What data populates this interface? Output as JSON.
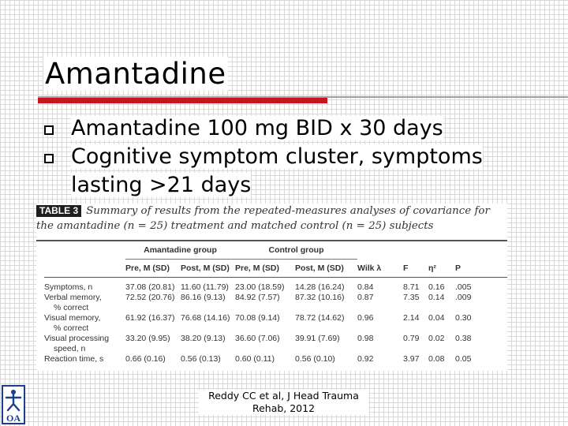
{
  "slide": {
    "title": "Amantadine",
    "bullets": [
      "Amantadine 100 mg BID x 30 days",
      "Cognitive symptom cluster, symptoms lasting >21 days"
    ],
    "citation": "Reddy CC et al, J Head Trauma Rehab, 2012",
    "logo_text": "OA"
  },
  "figure": {
    "tag": "TABLE 3",
    "caption": "Summary of results from the repeated-measures analyses of covariance for the amantadine (n = 25) treatment and matched control (n = 25) subjects",
    "groups": [
      "Amantadine group",
      "Control group"
    ],
    "columns": [
      "",
      "Pre, M (SD)",
      "Post, M (SD)",
      "Pre, M (SD)",
      "Post, M (SD)",
      "Wilk λ",
      "F",
      "η²",
      "P"
    ],
    "rows": [
      [
        "Symptoms, n",
        "37.08 (20.81)",
        "11.60 (11.79)",
        "23.00 (18.59)",
        "14.28 (16.24)",
        "0.84",
        "8.71",
        "0.16",
        ".005"
      ],
      [
        "Verbal memory,",
        "72.52 (20.76)",
        "86.16 (9.13)",
        "84.92 (7.57)",
        "87.32 (10.16)",
        "0.87",
        "7.35",
        "0.14",
        ".009"
      ],
      [
        "% correct",
        "",
        "",
        "",
        "",
        "",
        "",
        "",
        ""
      ],
      [
        "Visual memory,",
        "61.92 (16.37)",
        "76.68 (14.16)",
        "70.08 (9.14)",
        "78.72 (14.62)",
        "0.96",
        "2.14",
        "0.04",
        "0.30"
      ],
      [
        "% correct",
        "",
        "",
        "",
        "",
        "",
        "",
        "",
        ""
      ],
      [
        "Visual processing",
        "33.20 (9.95)",
        "38.20 (9.13)",
        "36.60 (7.06)",
        "39.91 (7.69)",
        "0.98",
        "0.79",
        "0.02",
        "0.38"
      ],
      [
        "speed, n",
        "",
        "",
        "",
        "",
        "",
        "",
        "",
        ""
      ],
      [
        "Reaction time, s",
        "0.66 (0.16)",
        "0.56 (0.13)",
        "0.60 (0.11)",
        "0.56 (0.10)",
        "0.92",
        "3.97",
        "0.08",
        "0.05"
      ]
    ]
  },
  "colors": {
    "accent_red": "#c8141e",
    "rule_gray": "#a0a0a0",
    "logo_blue": "#1a3f8c"
  }
}
